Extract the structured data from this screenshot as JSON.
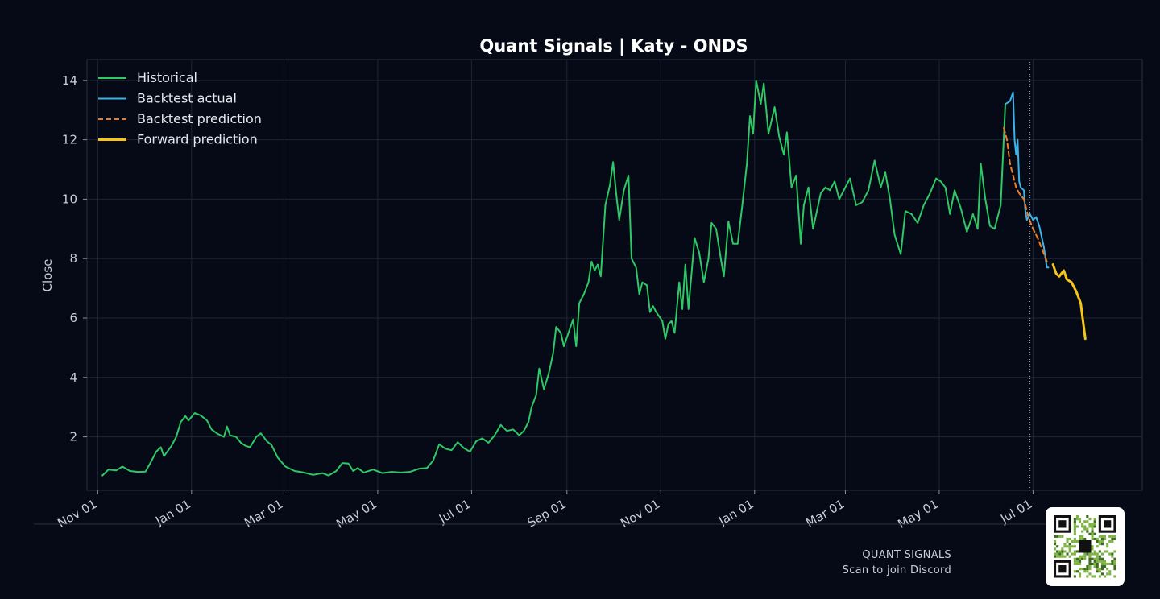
{
  "chart_data": {
    "type": "line",
    "title": "Quant Signals | Katy - ONDS",
    "xlabel": "",
    "ylabel": "Close",
    "ylim": [
      0.2,
      14.7
    ],
    "yticks": [
      2,
      4,
      6,
      8,
      10,
      12,
      14
    ],
    "xlim": [
      "2023-10-25",
      "2025-09-10"
    ],
    "xticks": [
      {
        "date": "2023-11-01",
        "label": "Nov 01"
      },
      {
        "date": "2024-01-01",
        "label": "Jan 01"
      },
      {
        "date": "2024-03-01",
        "label": "Mar 01"
      },
      {
        "date": "2024-05-01",
        "label": "May 01"
      },
      {
        "date": "2024-07-01",
        "label": "Jul 01"
      },
      {
        "date": "2024-09-01",
        "label": "Sep 01"
      },
      {
        "date": "2024-11-01",
        "label": "Nov 01"
      },
      {
        "date": "2025-01-01",
        "label": "Jan 01"
      },
      {
        "date": "2025-03-01",
        "label": "Mar 01"
      },
      {
        "date": "2025-05-01",
        "label": "May 01"
      },
      {
        "date": "2025-07-01",
        "label": "Jul 01"
      }
    ],
    "grid": true,
    "legend_position": "top-left",
    "forecast_start": "2025-06-29",
    "series": [
      {
        "name": "Historical",
        "color": "#2ec866",
        "style": "solid",
        "points": [
          [
            "2023-11-04",
            0.7
          ],
          [
            "2023-11-08",
            0.9
          ],
          [
            "2023-11-13",
            0.87
          ],
          [
            "2023-11-17",
            1.0
          ],
          [
            "2023-11-22",
            0.85
          ],
          [
            "2023-11-27",
            0.82
          ],
          [
            "2023-12-02",
            0.83
          ],
          [
            "2023-12-05",
            1.1
          ],
          [
            "2023-12-09",
            1.5
          ],
          [
            "2023-12-12",
            1.65
          ],
          [
            "2023-12-14",
            1.35
          ],
          [
            "2023-12-19",
            1.7
          ],
          [
            "2023-12-22",
            2.0
          ],
          [
            "2023-12-25",
            2.5
          ],
          [
            "2023-12-28",
            2.7
          ],
          [
            "2023-12-30",
            2.55
          ],
          [
            "2024-01-03",
            2.8
          ],
          [
            "2024-01-07",
            2.72
          ],
          [
            "2024-01-11",
            2.55
          ],
          [
            "2024-01-14",
            2.25
          ],
          [
            "2024-01-18",
            2.1
          ],
          [
            "2024-01-22",
            2.0
          ],
          [
            "2024-01-24",
            2.35
          ],
          [
            "2024-01-26",
            2.05
          ],
          [
            "2024-01-30",
            2.0
          ],
          [
            "2024-02-02",
            1.8
          ],
          [
            "2024-02-05",
            1.7
          ],
          [
            "2024-02-08",
            1.65
          ],
          [
            "2024-02-12",
            2.0
          ],
          [
            "2024-02-15",
            2.12
          ],
          [
            "2024-02-19",
            1.85
          ],
          [
            "2024-02-22",
            1.72
          ],
          [
            "2024-02-26",
            1.3
          ],
          [
            "2024-03-02",
            1.0
          ],
          [
            "2024-03-08",
            0.85
          ],
          [
            "2024-03-14",
            0.8
          ],
          [
            "2024-03-20",
            0.72
          ],
          [
            "2024-03-26",
            0.78
          ],
          [
            "2024-03-30",
            0.7
          ],
          [
            "2024-04-04",
            0.85
          ],
          [
            "2024-04-08",
            1.12
          ],
          [
            "2024-04-12",
            1.1
          ],
          [
            "2024-04-15",
            0.85
          ],
          [
            "2024-04-18",
            0.95
          ],
          [
            "2024-04-22",
            0.8
          ],
          [
            "2024-04-28",
            0.9
          ],
          [
            "2024-05-04",
            0.78
          ],
          [
            "2024-05-10",
            0.82
          ],
          [
            "2024-05-16",
            0.8
          ],
          [
            "2024-05-22",
            0.82
          ],
          [
            "2024-05-28",
            0.93
          ],
          [
            "2024-06-02",
            0.95
          ],
          [
            "2024-06-06",
            1.2
          ],
          [
            "2024-06-10",
            1.75
          ],
          [
            "2024-06-14",
            1.6
          ],
          [
            "2024-06-18",
            1.55
          ],
          [
            "2024-06-22",
            1.82
          ],
          [
            "2024-06-26",
            1.62
          ],
          [
            "2024-06-30",
            1.5
          ],
          [
            "2024-07-04",
            1.85
          ],
          [
            "2024-07-08",
            1.95
          ],
          [
            "2024-07-12",
            1.8
          ],
          [
            "2024-07-16",
            2.05
          ],
          [
            "2024-07-20",
            2.4
          ],
          [
            "2024-07-24",
            2.2
          ],
          [
            "2024-07-28",
            2.25
          ],
          [
            "2024-08-01",
            2.05
          ],
          [
            "2024-08-04",
            2.2
          ],
          [
            "2024-08-07",
            2.5
          ],
          [
            "2024-08-09",
            3.0
          ],
          [
            "2024-08-12",
            3.4
          ],
          [
            "2024-08-14",
            4.3
          ],
          [
            "2024-08-17",
            3.6
          ],
          [
            "2024-08-20",
            4.1
          ],
          [
            "2024-08-23",
            4.8
          ],
          [
            "2024-08-25",
            5.7
          ],
          [
            "2024-08-28",
            5.5
          ],
          [
            "2024-08-30",
            5.05
          ],
          [
            "2024-09-02",
            5.5
          ],
          [
            "2024-09-05",
            5.95
          ],
          [
            "2024-09-07",
            5.05
          ],
          [
            "2024-09-09",
            6.5
          ],
          [
            "2024-09-12",
            6.8
          ],
          [
            "2024-09-15",
            7.2
          ],
          [
            "2024-09-17",
            7.9
          ],
          [
            "2024-09-19",
            7.6
          ],
          [
            "2024-09-21",
            7.8
          ],
          [
            "2024-09-23",
            7.4
          ],
          [
            "2024-09-26",
            9.8
          ],
          [
            "2024-09-29",
            10.5
          ],
          [
            "2024-10-01",
            11.25
          ],
          [
            "2024-10-03",
            10.2
          ],
          [
            "2024-10-05",
            9.3
          ],
          [
            "2024-10-08",
            10.3
          ],
          [
            "2024-10-11",
            10.8
          ],
          [
            "2024-10-13",
            8.0
          ],
          [
            "2024-10-16",
            7.7
          ],
          [
            "2024-10-18",
            6.8
          ],
          [
            "2024-10-20",
            7.2
          ],
          [
            "2024-10-23",
            7.1
          ],
          [
            "2024-10-25",
            6.2
          ],
          [
            "2024-10-27",
            6.4
          ],
          [
            "2024-10-29",
            6.2
          ],
          [
            "2024-11-02",
            5.9
          ],
          [
            "2024-11-04",
            5.3
          ],
          [
            "2024-11-06",
            5.8
          ],
          [
            "2024-11-08",
            5.9
          ],
          [
            "2024-11-10",
            5.5
          ],
          [
            "2024-11-13",
            7.2
          ],
          [
            "2024-11-15",
            6.3
          ],
          [
            "2024-11-17",
            7.8
          ],
          [
            "2024-11-19",
            6.3
          ],
          [
            "2024-11-23",
            8.7
          ],
          [
            "2024-11-26",
            8.2
          ],
          [
            "2024-11-29",
            7.2
          ],
          [
            "2024-12-02",
            8.0
          ],
          [
            "2024-12-04",
            9.2
          ],
          [
            "2024-12-07",
            9.0
          ],
          [
            "2024-12-10",
            8.0
          ],
          [
            "2024-12-12",
            7.4
          ],
          [
            "2024-12-15",
            9.25
          ],
          [
            "2024-12-18",
            8.5
          ],
          [
            "2024-12-21",
            8.5
          ],
          [
            "2024-12-24",
            9.8
          ],
          [
            "2024-12-27",
            11.2
          ],
          [
            "2024-12-29",
            12.8
          ],
          [
            "2024-12-31",
            12.2
          ],
          [
            "2025-01-02",
            14.0
          ],
          [
            "2025-01-05",
            13.2
          ],
          [
            "2025-01-07",
            13.9
          ],
          [
            "2025-01-10",
            12.2
          ],
          [
            "2025-01-14",
            13.1
          ],
          [
            "2025-01-17",
            12.1
          ],
          [
            "2025-01-20",
            11.5
          ],
          [
            "2025-01-22",
            12.25
          ],
          [
            "2025-01-25",
            10.4
          ],
          [
            "2025-01-28",
            10.8
          ],
          [
            "2025-01-31",
            8.5
          ],
          [
            "2025-02-02",
            9.8
          ],
          [
            "2025-02-05",
            10.4
          ],
          [
            "2025-02-08",
            9.0
          ],
          [
            "2025-02-13",
            10.2
          ],
          [
            "2025-02-16",
            10.4
          ],
          [
            "2025-02-19",
            10.3
          ],
          [
            "2025-02-22",
            10.6
          ],
          [
            "2025-02-25",
            10.0
          ],
          [
            "2025-02-28",
            10.3
          ],
          [
            "2025-03-04",
            10.7
          ],
          [
            "2025-03-08",
            9.8
          ],
          [
            "2025-03-12",
            9.9
          ],
          [
            "2025-03-16",
            10.3
          ],
          [
            "2025-03-20",
            11.3
          ],
          [
            "2025-03-24",
            10.4
          ],
          [
            "2025-03-27",
            10.9
          ],
          [
            "2025-03-30",
            10.0
          ],
          [
            "2025-04-02",
            8.8
          ],
          [
            "2025-04-06",
            8.15
          ],
          [
            "2025-04-09",
            9.6
          ],
          [
            "2025-04-13",
            9.5
          ],
          [
            "2025-04-17",
            9.2
          ],
          [
            "2025-04-21",
            9.8
          ],
          [
            "2025-04-25",
            10.2
          ],
          [
            "2025-04-29",
            10.7
          ],
          [
            "2025-05-02",
            10.6
          ],
          [
            "2025-05-05",
            10.4
          ],
          [
            "2025-05-08",
            9.5
          ],
          [
            "2025-05-11",
            10.3
          ],
          [
            "2025-05-15",
            9.7
          ],
          [
            "2025-05-19",
            8.9
          ],
          [
            "2025-05-23",
            9.5
          ],
          [
            "2025-05-26",
            9.0
          ],
          [
            "2025-05-28",
            11.2
          ],
          [
            "2025-05-31",
            10.0
          ],
          [
            "2025-06-03",
            9.1
          ],
          [
            "2025-06-06",
            9.0
          ],
          [
            "2025-06-10",
            9.8
          ],
          [
            "2025-06-13",
            13.2
          ]
        ]
      },
      {
        "name": "Backtest actual",
        "color": "#3bb3e8",
        "style": "solid",
        "points": [
          [
            "2025-06-13",
            13.2
          ],
          [
            "2025-06-16",
            13.3
          ],
          [
            "2025-06-18",
            13.6
          ],
          [
            "2025-06-19",
            12.0
          ],
          [
            "2025-06-20",
            11.5
          ],
          [
            "2025-06-21",
            12.0
          ],
          [
            "2025-06-22",
            10.6
          ],
          [
            "2025-06-23",
            10.4
          ],
          [
            "2025-06-25",
            10.3
          ],
          [
            "2025-06-26",
            9.6
          ],
          [
            "2025-06-27",
            9.3
          ],
          [
            "2025-06-29",
            9.5
          ],
          [
            "2025-07-01",
            9.3
          ],
          [
            "2025-07-03",
            9.4
          ],
          [
            "2025-07-05",
            9.1
          ],
          [
            "2025-07-08",
            8.4
          ],
          [
            "2025-07-10",
            7.7
          ],
          [
            "2025-07-11",
            7.7
          ]
        ]
      },
      {
        "name": "Backtest prediction",
        "color": "#f07d24",
        "style": "dashed",
        "points": [
          [
            "2025-06-12",
            12.4
          ],
          [
            "2025-06-14",
            12.0
          ],
          [
            "2025-06-16",
            11.2
          ],
          [
            "2025-06-18",
            10.8
          ],
          [
            "2025-06-20",
            10.4
          ],
          [
            "2025-06-22",
            10.2
          ],
          [
            "2025-06-25",
            10.0
          ],
          [
            "2025-06-28",
            9.4
          ],
          [
            "2025-07-01",
            9.0
          ],
          [
            "2025-07-04",
            8.7
          ],
          [
            "2025-07-07",
            8.3
          ],
          [
            "2025-07-10",
            7.9
          ]
        ]
      },
      {
        "name": "Forward prediction",
        "color": "#f5c518",
        "style": "solid",
        "points": [
          [
            "2025-07-14",
            7.8
          ],
          [
            "2025-07-16",
            7.5
          ],
          [
            "2025-07-18",
            7.4
          ],
          [
            "2025-07-21",
            7.6
          ],
          [
            "2025-07-23",
            7.3
          ],
          [
            "2025-07-26",
            7.2
          ],
          [
            "2025-07-29",
            6.9
          ],
          [
            "2025-08-01",
            6.5
          ],
          [
            "2025-08-04",
            5.3
          ]
        ]
      }
    ]
  },
  "footer": {
    "brand": "QUANT SIGNALS",
    "cta": "Scan to join Discord"
  }
}
